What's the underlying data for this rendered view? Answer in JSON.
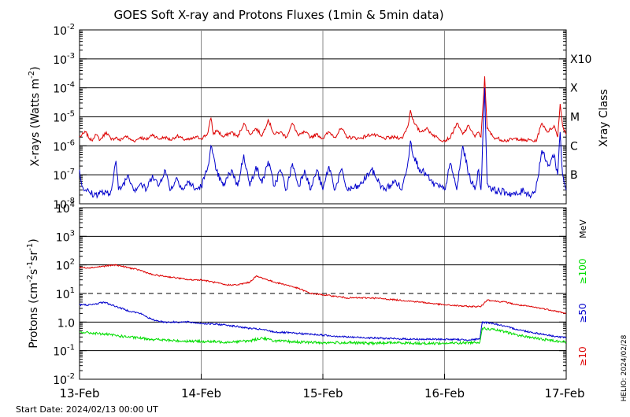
{
  "title": "GOES Soft X-ray and Protons Fluxes   (1min & 5min data)",
  "footer": {
    "start_date": "Start Date: 2024/02/13 00:00 UT",
    "credit": "HELIO: 2024/02/28"
  },
  "colors": {
    "xray_long": "#dd0000",
    "xray_short": "#0000cc",
    "p10": "#dd0000",
    "p50": "#0000cc",
    "p100": "#00dd00",
    "gridline": "#888888"
  },
  "x_ticks": [
    "13-Feb",
    "14-Feb",
    "15-Feb",
    "16-Feb",
    "17-Feb"
  ],
  "chart_data": [
    {
      "type": "line",
      "panel": "xrays",
      "ylabel": "X-rays (Watts m",
      "ylabel_sup": "-2",
      "ylabel_tail": ")",
      "y_scale": "log",
      "ylim": [
        1e-08,
        0.01
      ],
      "y_ticks": [
        {
          "base": "10",
          "exp": "-8"
        },
        {
          "base": "10",
          "exp": "-7"
        },
        {
          "base": "10",
          "exp": "-6"
        },
        {
          "base": "10",
          "exp": "-5"
        },
        {
          "base": "10",
          "exp": "-4"
        },
        {
          "base": "10",
          "exp": "-3"
        },
        {
          "base": "10",
          "exp": "-2"
        }
      ],
      "right_axis_title": "Xray Class",
      "class_labels": [
        {
          "label": "B",
          "flux": 1e-07
        },
        {
          "label": "C",
          "flux": 1e-06
        },
        {
          "label": "M",
          "flux": 1e-05
        },
        {
          "label": "X",
          "flux": 0.0001
        },
        {
          "label": "X10",
          "flux": 0.001
        }
      ],
      "x_days": [
        0,
        4
      ],
      "series": [
        {
          "key": "long",
          "color": "#dd0000",
          "x": [
            0,
            0.05,
            0.08,
            0.1,
            0.13,
            0.17,
            0.22,
            0.26,
            0.3,
            0.33,
            0.38,
            0.42,
            0.46,
            0.5,
            0.55,
            0.6,
            0.65,
            0.7,
            0.75,
            0.8,
            0.85,
            0.9,
            0.96,
            1.0,
            1.05,
            1.08,
            1.1,
            1.13,
            1.18,
            1.25,
            1.3,
            1.35,
            1.4,
            1.45,
            1.5,
            1.55,
            1.6,
            1.65,
            1.7,
            1.75,
            1.8,
            1.85,
            1.9,
            1.95,
            2.0,
            2.05,
            2.1,
            2.15,
            2.2,
            2.3,
            2.4,
            2.5,
            2.6,
            2.65,
            2.7,
            2.72,
            2.75,
            2.8,
            2.85,
            2.9,
            2.95,
            3.0,
            3.05,
            3.1,
            3.15,
            3.2,
            3.25,
            3.28,
            3.3,
            3.33,
            3.35,
            3.4,
            3.5,
            3.6,
            3.65,
            3.7,
            3.75,
            3.8,
            3.85,
            3.9,
            3.93,
            3.95,
            3.97,
            4.0
          ],
          "y": [
            2e-06,
            3e-06,
            1.8e-06,
            1.5e-06,
            2.5e-06,
            1.6e-06,
            3e-06,
            1.6e-06,
            2e-06,
            1.5e-06,
            2.2e-06,
            1.6e-06,
            1.5e-06,
            2e-06,
            1.6e-06,
            2.5e-06,
            1.7e-06,
            2e-06,
            1.6e-06,
            2.2e-06,
            1.7e-06,
            1.6e-06,
            2e-06,
            1.8e-06,
            2.5e-06,
            9e-06,
            2.5e-06,
            3.5e-06,
            2e-06,
            3e-06,
            2e-06,
            6e-06,
            2.5e-06,
            4e-06,
            2.2e-06,
            8e-06,
            2.5e-06,
            3e-06,
            2e-06,
            6e-06,
            2.2e-06,
            3e-06,
            2e-06,
            2.5e-06,
            1.8e-06,
            3e-06,
            2e-06,
            4e-06,
            2e-06,
            1.8e-06,
            2.5e-06,
            1.8e-06,
            2e-06,
            1.8e-06,
            5e-06,
            1.7e-05,
            6e-06,
            3e-06,
            4e-06,
            2.5e-06,
            1.8e-06,
            1.5e-06,
            2e-06,
            6e-06,
            2.5e-06,
            5e-06,
            2e-06,
            3e-06,
            2e-06,
            0.00025,
            4e-06,
            2e-06,
            1.5e-06,
            1.8e-06,
            1.5e-06,
            1.6e-06,
            1.4e-06,
            6e-06,
            3e-06,
            5e-06,
            2e-06,
            2.8e-05,
            5e-06,
            2.5e-06
          ]
        },
        {
          "key": "short",
          "color": "#0000cc",
          "x": [
            0,
            0.02,
            0.05,
            0.08,
            0.12,
            0.18,
            0.25,
            0.3,
            0.32,
            0.35,
            0.4,
            0.45,
            0.5,
            0.55,
            0.6,
            0.65,
            0.7,
            0.75,
            0.8,
            0.85,
            0.9,
            0.95,
            1.0,
            1.05,
            1.08,
            1.12,
            1.18,
            1.25,
            1.3,
            1.35,
            1.4,
            1.45,
            1.5,
            1.55,
            1.6,
            1.65,
            1.7,
            1.75,
            1.8,
            1.85,
            1.9,
            1.95,
            2.0,
            2.05,
            2.1,
            2.15,
            2.2,
            2.3,
            2.4,
            2.5,
            2.6,
            2.65,
            2.7,
            2.72,
            2.75,
            2.8,
            2.85,
            2.9,
            2.95,
            3.0,
            3.05,
            3.1,
            3.15,
            3.2,
            3.25,
            3.28,
            3.3,
            3.33,
            3.35,
            3.4,
            3.5,
            3.6,
            3.65,
            3.7,
            3.75,
            3.8,
            3.85,
            3.9,
            3.93,
            3.95,
            3.97,
            4.0
          ],
          "y": [
            1.5e-07,
            4e-08,
            3e-08,
            2.5e-08,
            2e-08,
            2.5e-08,
            2e-08,
            3e-07,
            3e-08,
            4e-08,
            1e-07,
            3e-08,
            5e-08,
            3e-08,
            1e-07,
            4e-08,
            1.5e-07,
            3e-08,
            8e-08,
            3e-08,
            6e-08,
            3e-08,
            4e-08,
            1.5e-07,
            1e-06,
            1.5e-07,
            4e-08,
            1.5e-07,
            4e-08,
            5e-07,
            4e-08,
            2e-07,
            5e-08,
            3e-07,
            4e-08,
            1.5e-07,
            3e-08,
            2.5e-07,
            4e-08,
            1.5e-07,
            3e-08,
            1.5e-07,
            3e-08,
            2e-07,
            3e-08,
            1.5e-07,
            3e-08,
            4e-08,
            1.5e-07,
            3e-08,
            6e-08,
            3e-08,
            3e-07,
            1.5e-06,
            4e-07,
            1.5e-07,
            1e-07,
            5e-08,
            4e-08,
            3e-08,
            2.5e-07,
            3e-08,
            1e-06,
            1e-07,
            3e-08,
            1.5e-07,
            3e-08,
            0.0001,
            5e-08,
            3e-08,
            2.5e-08,
            2e-08,
            3e-08,
            2e-08,
            3e-08,
            7e-07,
            2e-07,
            5e-07,
            1e-07,
            3e-06,
            1e-07,
            3e-08
          ]
        }
      ]
    },
    {
      "type": "line",
      "panel": "protons",
      "ylabel": "Protons (cm",
      "ylabel_sup1": "-2",
      "ylabel_mid1": "s",
      "ylabel_sup2": "-1",
      "ylabel_mid2": "sr",
      "ylabel_sup3": "-1",
      "ylabel_tail": ")",
      "y_scale": "log",
      "ylim": [
        0.01,
        10000
      ],
      "y_ticks": [
        {
          "base": "10",
          "exp": "-2"
        },
        {
          "base": "10",
          "exp": "-1"
        },
        {
          "base": "1.0",
          "exp": ""
        },
        {
          "base": "10",
          "exp": "1"
        },
        {
          "base": "10",
          "exp": "2"
        },
        {
          "base": "10",
          "exp": "3"
        },
        {
          "base": "10",
          "exp": "4"
        }
      ],
      "y_tick_values": [
        0.01,
        0.1,
        1,
        10,
        100,
        1000,
        10000
      ],
      "threshold": 10,
      "right_unit": "MeV",
      "legend": [
        {
          "label": "≥10",
          "color": "#dd0000"
        },
        {
          "label": "≥50",
          "color": "#0000cc"
        },
        {
          "label": "≥100",
          "color": "#00dd00"
        }
      ],
      "x_days": [
        0,
        4
      ],
      "series": [
        {
          "key": "p10",
          "color": "#dd0000",
          "x": [
            0,
            0.1,
            0.2,
            0.3,
            0.4,
            0.5,
            0.6,
            0.7,
            0.8,
            0.9,
            1.0,
            1.1,
            1.2,
            1.3,
            1.4,
            1.45,
            1.5,
            1.6,
            1.7,
            1.8,
            1.9,
            2.0,
            2.1,
            2.2,
            2.4,
            2.6,
            2.8,
            3.0,
            3.2,
            3.3,
            3.35,
            3.4,
            3.5,
            3.6,
            3.7,
            3.8,
            3.9,
            4.0
          ],
          "y": [
            80,
            80,
            90,
            100,
            80,
            65,
            45,
            40,
            35,
            30,
            30,
            25,
            20,
            20,
            25,
            40,
            35,
            25,
            20,
            15,
            10,
            9,
            8,
            7,
            7,
            6,
            5,
            4,
            3.5,
            3.5,
            6,
            5.5,
            5,
            4,
            3.5,
            3,
            2.5,
            2
          ]
        },
        {
          "key": "p50",
          "color": "#0000cc",
          "x": [
            0,
            0.1,
            0.2,
            0.3,
            0.4,
            0.5,
            0.6,
            0.7,
            0.8,
            0.9,
            1.0,
            1.2,
            1.4,
            1.5,
            1.6,
            1.8,
            2.0,
            2.2,
            2.4,
            2.6,
            2.8,
            3.0,
            3.2,
            3.29,
            3.31,
            3.4,
            3.5,
            3.6,
            3.7,
            3.8,
            3.9,
            4.0
          ],
          "y": [
            4,
            4,
            5,
            3.5,
            2.5,
            2,
            1.2,
            1,
            1,
            1,
            0.9,
            0.8,
            0.6,
            0.55,
            0.45,
            0.4,
            0.35,
            0.3,
            0.28,
            0.26,
            0.25,
            0.25,
            0.24,
            0.25,
            1,
            0.9,
            0.7,
            0.55,
            0.45,
            0.38,
            0.32,
            0.28
          ]
        },
        {
          "key": "p100",
          "color": "#00dd00",
          "x": [
            0,
            0.2,
            0.4,
            0.6,
            0.8,
            1.0,
            1.2,
            1.4,
            1.5,
            1.6,
            1.8,
            2.0,
            2.2,
            2.4,
            2.6,
            2.8,
            3.0,
            3.2,
            3.29,
            3.31,
            3.4,
            3.5,
            3.6,
            3.8,
            4.0
          ],
          "y": [
            0.45,
            0.38,
            0.3,
            0.25,
            0.22,
            0.21,
            0.2,
            0.22,
            0.28,
            0.22,
            0.2,
            0.19,
            0.19,
            0.18,
            0.19,
            0.18,
            0.18,
            0.19,
            0.2,
            0.6,
            0.55,
            0.45,
            0.35,
            0.25,
            0.2
          ]
        }
      ]
    }
  ]
}
